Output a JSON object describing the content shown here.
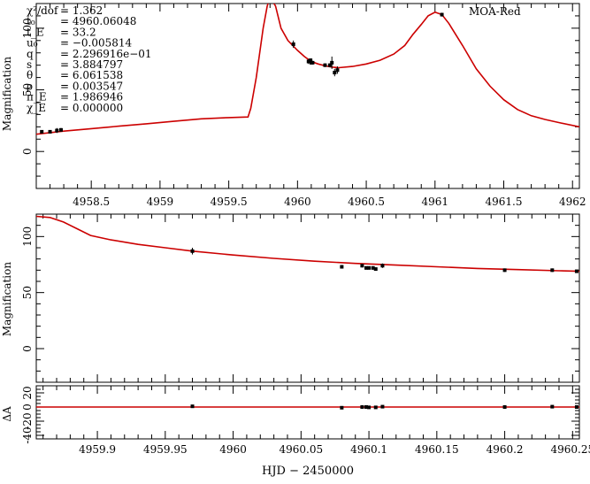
{
  "chart_data": [
    {
      "type": "line",
      "label": "MOA-Red",
      "xlim": [
        4958.1,
        4962.05
      ],
      "ylim": [
        -30,
        120
      ],
      "ylabel": "Magnification",
      "x_ticks": [
        "4958.5",
        "4959",
        "4959.5",
        "4960",
        "4960.5",
        "4961",
        "4961.5",
        "4962"
      ],
      "y_ticks": [
        "0",
        "50",
        "100"
      ],
      "params": [
        {
          "name": "χ²/dof",
          "value": "= 1.362"
        },
        {
          "name": "t₀",
          "value": "= 4960.06048"
        },
        {
          "name": "t_E",
          "value": "= 33.2"
        },
        {
          "name": "u₀",
          "value": "= −0.005814"
        },
        {
          "name": "q",
          "value": "= 2.296916e−01"
        },
        {
          "name": "s",
          "value": "= 3.884797"
        },
        {
          "name": "θ",
          "value": "= 6.061538"
        },
        {
          "name": "ρ",
          "value": "= 0.003547"
        },
        {
          "name": "π_E",
          "value": "= 1.986946"
        },
        {
          "name": "χ_E",
          "value": "= 0.000000"
        }
      ],
      "model": {
        "x": [
          4958.1,
          4958.3,
          4958.5,
          4958.7,
          4958.9,
          4959.1,
          4959.3,
          4959.5,
          4959.64,
          4959.66,
          4959.7,
          4959.75,
          4959.78,
          4959.8,
          4959.84,
          4959.88,
          4959.93,
          4960.0,
          4960.05,
          4960.1,
          4960.15,
          4960.2,
          4960.25,
          4960.3,
          4960.4,
          4960.5,
          4960.6,
          4960.7,
          4960.78,
          4960.84,
          4960.9,
          4960.95,
          4961.0,
          4961.05,
          4961.1,
          4961.2,
          4961.3,
          4961.4,
          4961.5,
          4961.6,
          4961.7,
          4961.8,
          4961.9,
          4962.05
        ],
        "y": [
          14,
          16.5,
          18.5,
          20.5,
          22.5,
          24.5,
          26.5,
          27.5,
          28,
          35,
          60,
          100,
          118,
          125,
          118,
          100,
          90,
          82,
          77,
          73,
          71,
          69.5,
          68.5,
          68,
          69,
          71,
          74,
          79,
          86,
          95,
          103,
          110,
          113,
          111,
          104,
          86,
          67,
          53,
          42,
          34,
          29,
          26,
          23.5,
          20
        ]
      },
      "points": [
        {
          "x": 4958.14,
          "y": 16,
          "e": 1
        },
        {
          "x": 4958.2,
          "y": 16,
          "e": 1
        },
        {
          "x": 4958.25,
          "y": 17,
          "e": 2
        },
        {
          "x": 4958.28,
          "y": 17.5,
          "e": 1.5
        },
        {
          "x": 4959.97,
          "y": 87,
          "e": 3
        },
        {
          "x": 4960.08,
          "y": 73,
          "e": 2
        },
        {
          "x": 4960.095,
          "y": 74,
          "e": 1.5
        },
        {
          "x": 4960.1,
          "y": 72,
          "e": 1.5
        },
        {
          "x": 4960.11,
          "y": 72,
          "e": 1.5
        },
        {
          "x": 4960.2,
          "y": 70,
          "e": 1.5
        },
        {
          "x": 4960.235,
          "y": 70,
          "e": 1.5
        },
        {
          "x": 4960.25,
          "y": 72,
          "e": 5
        },
        {
          "x": 4960.27,
          "y": 64,
          "e": 3
        },
        {
          "x": 4960.29,
          "y": 66,
          "e": 3
        },
        {
          "x": 4961.05,
          "y": 111,
          "e": 1.5
        }
      ]
    },
    {
      "type": "line",
      "xlim": [
        4959.855,
        4960.255
      ],
      "ylim": [
        -30,
        120
      ],
      "ylabel": "Magnification",
      "y_ticks": [
        "0",
        "50",
        "100"
      ],
      "model": {
        "x": [
          4959.855,
          4959.865,
          4959.875,
          4959.885,
          4959.895,
          4959.91,
          4959.93,
          4959.95,
          4959.97,
          4960.0,
          4960.03,
          4960.06,
          4960.09,
          4960.12,
          4960.15,
          4960.18,
          4960.21,
          4960.24,
          4960.255
        ],
        "y": [
          118,
          117,
          113,
          107,
          101,
          97,
          93,
          90,
          87,
          83.5,
          80.5,
          78,
          76,
          74.5,
          73,
          71.5,
          70.5,
          69.5,
          69
        ]
      },
      "points": [
        {
          "x": 4959.97,
          "y": 87,
          "e": 3
        },
        {
          "x": 4960.08,
          "y": 73,
          "e": 1.5
        },
        {
          "x": 4960.095,
          "y": 74,
          "e": 1.5
        },
        {
          "x": 4960.098,
          "y": 72,
          "e": 1.5
        },
        {
          "x": 4960.1,
          "y": 72,
          "e": 1.5
        },
        {
          "x": 4960.103,
          "y": 72,
          "e": 1.5
        },
        {
          "x": 4960.105,
          "y": 71,
          "e": 1.5
        },
        {
          "x": 4960.11,
          "y": 74,
          "e": 2
        },
        {
          "x": 4960.2,
          "y": 70,
          "e": 1.5
        },
        {
          "x": 4960.235,
          "y": 70,
          "e": 1.5
        },
        {
          "x": 4960.253,
          "y": 69,
          "e": 1.5
        }
      ]
    },
    {
      "type": "scatter",
      "xlim": [
        4959.855,
        4960.255
      ],
      "ylim": [
        -45,
        30
      ],
      "ylabel": "ΔA",
      "x_ticks": [
        "4959.9",
        "4959.95",
        "4960",
        "4960.05",
        "4960.1",
        "4960.15",
        "4960.2",
        "4960.25"
      ],
      "xlabel": "HJD − 2450000",
      "y_ticks": [
        "-40",
        "-20",
        "0",
        "20"
      ],
      "baseline": 0,
      "points": [
        {
          "x": 4959.97,
          "y": 1
        },
        {
          "x": 4960.08,
          "y": -1
        },
        {
          "x": 4960.095,
          "y": 0
        },
        {
          "x": 4960.098,
          "y": 0
        },
        {
          "x": 4960.1,
          "y": -0.5
        },
        {
          "x": 4960.105,
          "y": -0.5
        },
        {
          "x": 4960.11,
          "y": 0.5
        },
        {
          "x": 4960.2,
          "y": 0
        },
        {
          "x": 4960.235,
          "y": 0.5
        },
        {
          "x": 4960.253,
          "y": 0
        }
      ]
    }
  ]
}
